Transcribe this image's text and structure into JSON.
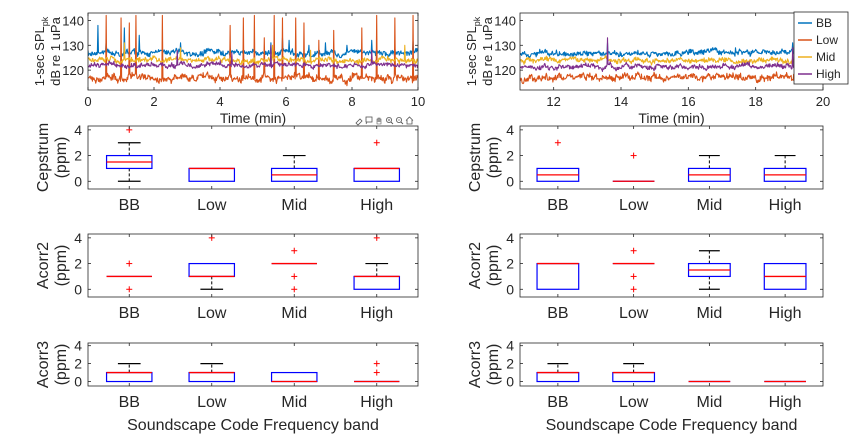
{
  "figure_toolbar_icons": [
    "brush-icon",
    "data-tip-icon",
    "pan-icon",
    "zoom-in-icon",
    "zoom-out-icon",
    "home-icon"
  ],
  "chart_data": [
    {
      "id": "ts-left",
      "type": "line",
      "xlabel": "Time (min)",
      "ylabel_line1": "1-sec SPL",
      "ylabel_sub": "pk",
      "ylabel_line2": "dB re 1 uPa",
      "xlim": [
        0,
        10
      ],
      "ylim": [
        112,
        143
      ],
      "xticks": [
        0,
        2,
        4,
        6,
        8,
        10
      ],
      "yticks": [
        120,
        130,
        140
      ],
      "series": [
        {
          "name": "BB",
          "color": "#0072BD",
          "base": 127,
          "noise": 1.2,
          "spikes": [
            [
              0.3,
              138
            ],
            [
              0.55,
              132
            ],
            [
              1.1,
              137
            ],
            [
              1.55,
              134
            ],
            [
              2.8,
              131
            ],
            [
              4.3,
              129
            ],
            [
              5.55,
              131
            ],
            [
              5.9,
              133
            ],
            [
              6.1,
              132
            ],
            [
              6.7,
              130
            ],
            [
              7.2,
              131
            ],
            [
              7.85,
              130
            ],
            [
              8.6,
              132
            ],
            [
              9.3,
              129
            ],
            [
              9.85,
              132
            ]
          ]
        },
        {
          "name": "Low",
          "color": "#D95319",
          "base": 117,
          "noise": 1.5,
          "spikes": [
            [
              0.55,
              142
            ],
            [
              1.0,
              141
            ],
            [
              1.25,
              139
            ],
            [
              1.45,
              142
            ],
            [
              2.25,
              142
            ],
            [
              4.3,
              138
            ],
            [
              4.7,
              141
            ],
            [
              5.05,
              142
            ],
            [
              5.35,
              133
            ],
            [
              5.65,
              142
            ],
            [
              5.9,
              141
            ],
            [
              6.3,
              141
            ],
            [
              6.55,
              139
            ],
            [
              7.0,
              132
            ],
            [
              7.45,
              136
            ],
            [
              8.3,
              137
            ],
            [
              8.75,
              142
            ],
            [
              9.3,
              141
            ],
            [
              9.85,
              142
            ]
          ]
        },
        {
          "name": "Mid",
          "color": "#EDB120",
          "base": 124,
          "noise": 1.1,
          "spikes": [
            [
              1.1,
              131
            ],
            [
              2.8,
              129
            ],
            [
              5.6,
              130
            ],
            [
              6.75,
              128
            ],
            [
              9.6,
              130
            ]
          ]
        },
        {
          "name": "High",
          "color": "#7E2F8E",
          "base": 122,
          "noise": 1.0,
          "spikes": [
            [
              2.7,
              128
            ],
            [
              4.35,
              127
            ],
            [
              5.55,
              130
            ],
            [
              8.6,
              128
            ]
          ]
        }
      ]
    },
    {
      "id": "ts-right",
      "type": "line",
      "xlabel": "Time (min)",
      "ylabel_line1": "1-sec SPL",
      "ylabel_sub": "pk",
      "ylabel_line2": "dB re 1 uPa",
      "xlim": [
        11,
        20
      ],
      "ylim": [
        112,
        143
      ],
      "xticks": [
        12,
        14,
        16,
        18,
        20
      ],
      "yticks": [
        120,
        130,
        140
      ],
      "legend_position": "outside-right",
      "series": [
        {
          "name": "BB",
          "color": "#0072BD",
          "base": 127,
          "noise": 1.1,
          "spikes": [
            [
              13.6,
              131
            ],
            [
              17.4,
              129
            ],
            [
              19.1,
              131
            ],
            [
              19.9,
              139
            ]
          ]
        },
        {
          "name": "Low",
          "color": "#D95319",
          "base": 117,
          "noise": 1.4,
          "spikes": [
            [
              19.85,
              143
            ]
          ]
        },
        {
          "name": "Mid",
          "color": "#EDB120",
          "base": 124,
          "noise": 1.0,
          "spikes": [
            [
              19.9,
              134
            ]
          ]
        },
        {
          "name": "High",
          "color": "#7E2F8E",
          "base": 121.5,
          "noise": 1.0,
          "spikes": [
            [
              13.6,
              133
            ],
            [
              19.1,
              129
            ]
          ]
        }
      ]
    },
    {
      "id": "box-cep-left",
      "type": "box",
      "ylabel_line1": "Cepstrum",
      "ylabel_line2": "(ppm)",
      "xlabel": "",
      "categories": [
        "BB",
        "Low",
        "Mid",
        "High"
      ],
      "ylim": [
        -0.6,
        4.3
      ],
      "yticks": [
        0,
        2,
        4
      ],
      "boxes": [
        {
          "q1": 1,
          "median": 1.5,
          "q3": 2,
          "whisker_low": 0,
          "whisker_high": 3,
          "outliers": [
            4
          ]
        },
        {
          "q1": 0,
          "median": 1,
          "q3": 1,
          "whisker_low": 0,
          "whisker_high": 1,
          "outliers": []
        },
        {
          "q1": 0,
          "median": 0.5,
          "q3": 1,
          "whisker_low": 0,
          "whisker_high": 2,
          "outliers": []
        },
        {
          "q1": 0,
          "median": 1,
          "q3": 1,
          "whisker_low": 0,
          "whisker_high": 1,
          "outliers": [
            3
          ]
        }
      ]
    },
    {
      "id": "box-cep-right",
      "type": "box",
      "ylabel_line1": "Cepstrum",
      "ylabel_line2": "(ppm)",
      "xlabel": "",
      "categories": [
        "BB",
        "Low",
        "Mid",
        "High"
      ],
      "ylim": [
        -0.6,
        4.3
      ],
      "yticks": [
        0,
        2,
        4
      ],
      "boxes": [
        {
          "q1": 0,
          "median": 0.5,
          "q3": 1,
          "whisker_low": 0,
          "whisker_high": 1,
          "outliers": [
            3
          ]
        },
        {
          "q1": 0,
          "median": 0,
          "q3": 0,
          "whisker_low": 0,
          "whisker_high": 0,
          "outliers": [
            2
          ]
        },
        {
          "q1": 0,
          "median": 0.5,
          "q3": 1,
          "whisker_low": 0,
          "whisker_high": 2,
          "outliers": []
        },
        {
          "q1": 0,
          "median": 0.5,
          "q3": 1,
          "whisker_low": 0,
          "whisker_high": 2,
          "outliers": []
        }
      ]
    },
    {
      "id": "box-ac2-left",
      "type": "box",
      "ylabel_line1": "Acorr2",
      "ylabel_line2": "(ppm)",
      "xlabel": "",
      "categories": [
        "BB",
        "Low",
        "Mid",
        "High"
      ],
      "ylim": [
        -0.6,
        4.3
      ],
      "yticks": [
        0,
        2,
        4
      ],
      "boxes": [
        {
          "q1": 1,
          "median": 1,
          "q3": 1,
          "whisker_low": 1,
          "whisker_high": 1,
          "outliers": [
            0,
            2
          ]
        },
        {
          "q1": 1,
          "median": 1,
          "q3": 2,
          "whisker_low": 0,
          "whisker_high": 2,
          "outliers": [
            4
          ]
        },
        {
          "q1": 2,
          "median": 2,
          "q3": 2,
          "whisker_low": 2,
          "whisker_high": 2,
          "outliers": [
            0,
            1,
            3
          ]
        },
        {
          "q1": 0,
          "median": 1,
          "q3": 1,
          "whisker_low": 0,
          "whisker_high": 2,
          "outliers": [
            4
          ]
        }
      ]
    },
    {
      "id": "box-ac2-right",
      "type": "box",
      "ylabel_line1": "Acorr2",
      "ylabel_line2": "(ppm)",
      "xlabel": "",
      "categories": [
        "BB",
        "Low",
        "Mid",
        "High"
      ],
      "ylim": [
        -0.6,
        4.3
      ],
      "yticks": [
        0,
        2,
        4
      ],
      "boxes": [
        {
          "q1": 0,
          "median": 2,
          "q3": 2,
          "whisker_low": 0,
          "whisker_high": 2,
          "outliers": []
        },
        {
          "q1": 2,
          "median": 2,
          "q3": 2,
          "whisker_low": 2,
          "whisker_high": 2,
          "outliers": [
            0,
            1,
            3
          ]
        },
        {
          "q1": 1,
          "median": 1.5,
          "q3": 2,
          "whisker_low": 0,
          "whisker_high": 3,
          "outliers": []
        },
        {
          "q1": 0,
          "median": 1,
          "q3": 2,
          "whisker_low": 0,
          "whisker_high": 2,
          "outliers": []
        }
      ]
    },
    {
      "id": "box-ac3-left",
      "type": "box",
      "ylabel_line1": "Acorr3",
      "ylabel_line2": "(ppm)",
      "xlabel": "Soundscape Code Frequency band",
      "categories": [
        "BB",
        "Low",
        "Mid",
        "High"
      ],
      "ylim": [
        -0.5,
        4.3
      ],
      "yticks": [
        0,
        2,
        4
      ],
      "boxes": [
        {
          "q1": 0,
          "median": 1,
          "q3": 1,
          "whisker_low": 0,
          "whisker_high": 2,
          "outliers": []
        },
        {
          "q1": 0,
          "median": 1,
          "q3": 1,
          "whisker_low": 0,
          "whisker_high": 2,
          "outliers": []
        },
        {
          "q1": 0,
          "median": 0,
          "q3": 1,
          "whisker_low": 0,
          "whisker_high": 1,
          "outliers": []
        },
        {
          "q1": 0,
          "median": 0,
          "q3": 0,
          "whisker_low": 0,
          "whisker_high": 0,
          "outliers": [
            1,
            2
          ]
        }
      ]
    },
    {
      "id": "box-ac3-right",
      "type": "box",
      "ylabel_line1": "Acorr3",
      "ylabel_line2": "(ppm)",
      "xlabel": "Soundscape Code Frequency band",
      "categories": [
        "BB",
        "Low",
        "Mid",
        "High"
      ],
      "ylim": [
        -0.5,
        4.3
      ],
      "yticks": [
        0,
        2,
        4
      ],
      "boxes": [
        {
          "q1": 0,
          "median": 1,
          "q3": 1,
          "whisker_low": 0,
          "whisker_high": 2,
          "outliers": []
        },
        {
          "q1": 0,
          "median": 1,
          "q3": 1,
          "whisker_low": 0,
          "whisker_high": 2,
          "outliers": []
        },
        {
          "q1": 0,
          "median": 0,
          "q3": 0,
          "whisker_low": 0,
          "whisker_high": 0,
          "outliers": []
        },
        {
          "q1": 0,
          "median": 0,
          "q3": 0,
          "whisker_low": 0,
          "whisker_high": 0,
          "outliers": []
        }
      ]
    }
  ],
  "colors": {
    "box_edge": "#0000FF",
    "median": "#FF0000",
    "outlier": "#FF0000",
    "whisker": "#000000",
    "axis": "#262626"
  }
}
